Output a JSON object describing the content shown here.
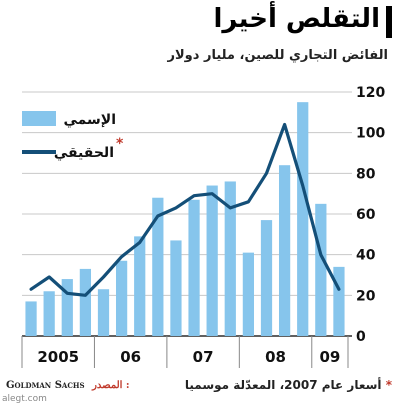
{
  "title": "التقلص أخيرا",
  "subtitle": "الفائض التجاري للصين، مليار دولار",
  "footer": {
    "source_name": "Goldman Sachs",
    "source_label": "المصدر :",
    "note_star": "*",
    "note": "أسعار عام 2007، المعدّلة موسميا"
  },
  "watermark": "alegt.com",
  "colors": {
    "bars": "#86c5ec",
    "line": "#144f78",
    "grid": "#c8c8c8",
    "accent": "#c0392b"
  },
  "chart_data": {
    "type": "bar",
    "ylim": [
      0,
      120
    ],
    "yticks": [
      0,
      20,
      40,
      60,
      80,
      100,
      120
    ],
    "y_axis_side": "right",
    "grid": true,
    "legend_position": "top-left",
    "x_tick_labels": [
      "2005",
      "06",
      "07",
      "08",
      "09"
    ],
    "series": [
      {
        "name": "الإسمي",
        "kind": "bar",
        "values": [
          17,
          22,
          28,
          33,
          23,
          37,
          49,
          68,
          47,
          67,
          74,
          76,
          41,
          57,
          84,
          115,
          65,
          34
        ]
      },
      {
        "name": "الحقيقي",
        "name_marker": "*",
        "kind": "line",
        "values": [
          23,
          29,
          21,
          20,
          29,
          39,
          46,
          59,
          63,
          69,
          70,
          63,
          66,
          80,
          104,
          74,
          40,
          23
        ]
      }
    ]
  }
}
